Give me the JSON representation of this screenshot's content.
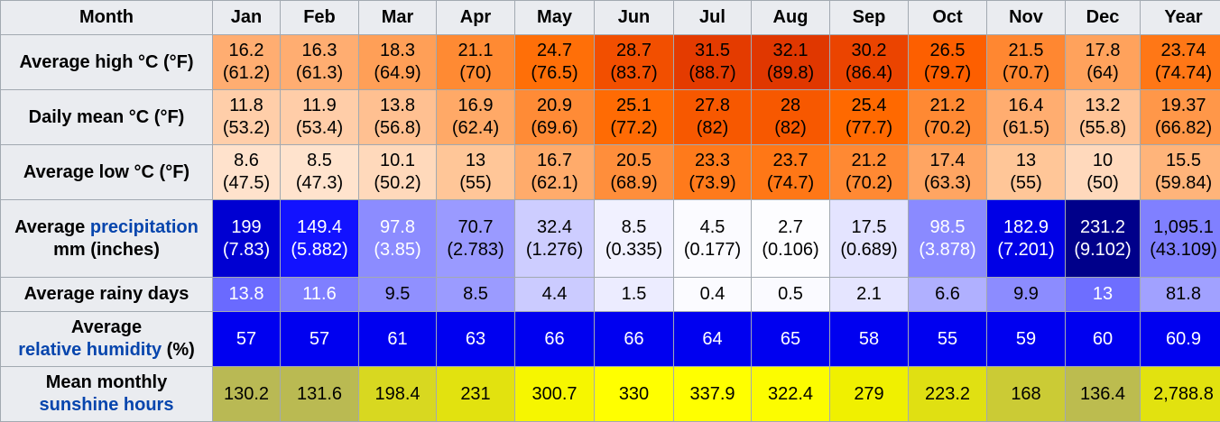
{
  "header": {
    "month_label": "Month",
    "months": [
      "Jan",
      "Feb",
      "Mar",
      "Apr",
      "May",
      "Jun",
      "Jul",
      "Aug",
      "Sep",
      "Oct",
      "Nov",
      "Dec"
    ],
    "year_label": "Year"
  },
  "rows": {
    "high": {
      "label": "Average high °C (°F)",
      "cells": [
        {
          "c": "16.2",
          "f": "(61.2)",
          "bg": "#ffad71",
          "fg": "#000000"
        },
        {
          "c": "16.3",
          "f": "(61.3)",
          "bg": "#ffad71",
          "fg": "#000000"
        },
        {
          "c": "18.3",
          "f": "(64.9)",
          "bg": "#ff9f57",
          "fg": "#000000"
        },
        {
          "c": "21.1",
          "f": "(70)",
          "bg": "#ff8a33",
          "fg": "#000000"
        },
        {
          "c": "24.7",
          "f": "(76.5)",
          "bg": "#ff6f08",
          "fg": "#000000"
        },
        {
          "c": "28.7",
          "f": "(83.7)",
          "bg": "#f24f00",
          "fg": "#000000"
        },
        {
          "c": "31.5",
          "f": "(88.7)",
          "bg": "#e43b00",
          "fg": "#000000"
        },
        {
          "c": "32.1",
          "f": "(89.8)",
          "bg": "#e03700",
          "fg": "#000000"
        },
        {
          "c": "30.2",
          "f": "(86.4)",
          "bg": "#eb4400",
          "fg": "#000000"
        },
        {
          "c": "26.5",
          "f": "(79.7)",
          "bg": "#fd5f00",
          "fg": "#000000"
        },
        {
          "c": "21.5",
          "f": "(70.7)",
          "bg": "#ff8731",
          "fg": "#000000"
        },
        {
          "c": "17.8",
          "f": "(64)",
          "bg": "#ffa25c",
          "fg": "#000000"
        },
        {
          "c": "23.74",
          "f": "(74.74)",
          "bg": "#ff7716",
          "fg": "#000000"
        }
      ]
    },
    "mean": {
      "label": "Daily mean °C (°F)",
      "cells": [
        {
          "c": "11.8",
          "f": "(53.2)",
          "bg": "#ffcea9",
          "fg": "#000000"
        },
        {
          "c": "11.9",
          "f": "(53.4)",
          "bg": "#ffcda8",
          "fg": "#000000"
        },
        {
          "c": "13.8",
          "f": "(56.8)",
          "bg": "#ffc091",
          "fg": "#000000"
        },
        {
          "c": "16.9",
          "f": "(62.4)",
          "bg": "#ffa967",
          "fg": "#000000"
        },
        {
          "c": "20.9",
          "f": "(69.6)",
          "bg": "#ff8b36",
          "fg": "#000000"
        },
        {
          "c": "25.1",
          "f": "(77.2)",
          "bg": "#ff6b04",
          "fg": "#000000"
        },
        {
          "c": "27.8",
          "f": "(82)",
          "bg": "#f75800",
          "fg": "#000000"
        },
        {
          "c": "28",
          "f": "(82)",
          "bg": "#f75800",
          "fg": "#000000"
        },
        {
          "c": "25.4",
          "f": "(77.7)",
          "bg": "#ff6900",
          "fg": "#000000"
        },
        {
          "c": "21.2",
          "f": "(70.2)",
          "bg": "#ff8933",
          "fg": "#000000"
        },
        {
          "c": "16.4",
          "f": "(61.5)",
          "bg": "#ffad70",
          "fg": "#000000"
        },
        {
          "c": "13.2",
          "f": "(55.8)",
          "bg": "#ffc497",
          "fg": "#000000"
        },
        {
          "c": "19.37",
          "f": "(66.82)",
          "bg": "#ff9749",
          "fg": "#000000"
        }
      ]
    },
    "low": {
      "label": "Average low °C (°F)",
      "cells": [
        {
          "c": "8.6",
          "f": "(47.5)",
          "bg": "#ffe2cc",
          "fg": "#000000"
        },
        {
          "c": "8.5",
          "f": "(47.3)",
          "bg": "#ffe3cd",
          "fg": "#000000"
        },
        {
          "c": "10.1",
          "f": "(50.2)",
          "bg": "#ffd9bb",
          "fg": "#000000"
        },
        {
          "c": "13",
          "f": "(55)",
          "bg": "#ffc698",
          "fg": "#000000"
        },
        {
          "c": "16.7",
          "f": "(62.1)",
          "bg": "#ffab6b",
          "fg": "#000000"
        },
        {
          "c": "20.5",
          "f": "(68.9)",
          "bg": "#ff8e3b",
          "fg": "#000000"
        },
        {
          "c": "23.3",
          "f": "(73.9)",
          "bg": "#ff7a1b",
          "fg": "#000000"
        },
        {
          "c": "23.7",
          "f": "(74.7)",
          "bg": "#ff7716",
          "fg": "#000000"
        },
        {
          "c": "21.2",
          "f": "(70.2)",
          "bg": "#ff8933",
          "fg": "#000000"
        },
        {
          "c": "17.4",
          "f": "(63.3)",
          "bg": "#ffa562",
          "fg": "#000000"
        },
        {
          "c": "13",
          "f": "(55)",
          "bg": "#ffc698",
          "fg": "#000000"
        },
        {
          "c": "10",
          "f": "(50)",
          "bg": "#ffd9bc",
          "fg": "#000000"
        },
        {
          "c": "15.5",
          "f": "(59.84)",
          "bg": "#ffb47a",
          "fg": "#000000"
        }
      ]
    },
    "precip": {
      "label_pre": "Average ",
      "label_link": "precipitation",
      "label_post": " mm (inches)",
      "cells": [
        {
          "c": "199",
          "f": "(7.83)",
          "bg": "#0000d2",
          "fg": "#ffffff"
        },
        {
          "c": "149.4",
          "f": "(5.882)",
          "bg": "#1212ff",
          "fg": "#ffffff"
        },
        {
          "c": "97.8",
          "f": "(3.85)",
          "bg": "#8c8cff",
          "fg": "#ffffff"
        },
        {
          "c": "70.7",
          "f": "(2.783)",
          "bg": "#9a9aff",
          "fg": "#000000"
        },
        {
          "c": "32.4",
          "f": "(1.276)",
          "bg": "#cdcdff",
          "fg": "#000000"
        },
        {
          "c": "8.5",
          "f": "(0.335)",
          "bg": "#f1f1ff",
          "fg": "#000000"
        },
        {
          "c": "4.5",
          "f": "(0.177)",
          "bg": "#fbfbff",
          "fg": "#000000"
        },
        {
          "c": "2.7",
          "f": "(0.106)",
          "bg": "#fdfdff",
          "fg": "#000000"
        },
        {
          "c": "17.5",
          "f": "(0.689)",
          "bg": "#e4e4ff",
          "fg": "#000000"
        },
        {
          "c": "98.5",
          "f": "(3.878)",
          "bg": "#8a8aff",
          "fg": "#ffffff"
        },
        {
          "c": "182.9",
          "f": "(7.201)",
          "bg": "#0000e6",
          "fg": "#ffffff"
        },
        {
          "c": "231.2",
          "f": "(9.102)",
          "bg": "#00008a",
          "fg": "#ffffff"
        },
        {
          "c": "1,095.1",
          "f": "(43.109)",
          "bg": "#8080ff",
          "fg": "#000000"
        }
      ]
    },
    "rainy": {
      "label": "Average rainy days",
      "cells": [
        {
          "v": "13.8",
          "bg": "#6a6aff",
          "fg": "#ffffff"
        },
        {
          "v": "11.6",
          "bg": "#7f7fff",
          "fg": "#ffffff"
        },
        {
          "v": "9.5",
          "bg": "#9090ff",
          "fg": "#000000"
        },
        {
          "v": "8.5",
          "bg": "#9b9bff",
          "fg": "#000000"
        },
        {
          "v": "4.4",
          "bg": "#cbcbff",
          "fg": "#000000"
        },
        {
          "v": "1.5",
          "bg": "#ececff",
          "fg": "#000000"
        },
        {
          "v": "0.4",
          "bg": "#fbfbff",
          "fg": "#000000"
        },
        {
          "v": "0.5",
          "bg": "#fafaff",
          "fg": "#000000"
        },
        {
          "v": "2.1",
          "bg": "#e5e5ff",
          "fg": "#000000"
        },
        {
          "v": "6.6",
          "bg": "#b0b0ff",
          "fg": "#000000"
        },
        {
          "v": "9.9",
          "bg": "#8c8cff",
          "fg": "#000000"
        },
        {
          "v": "13",
          "bg": "#6e6eff",
          "fg": "#ffffff"
        },
        {
          "v": "81.8",
          "bg": "#a1a1ff",
          "fg": "#000000"
        }
      ]
    },
    "humidity": {
      "label_pre": "Average ",
      "label_link": "relative humidity",
      "label_post": " (%)",
      "cells": [
        {
          "v": "57",
          "bg": "#0000f0",
          "fg": "#ffffff"
        },
        {
          "v": "57",
          "bg": "#0000f0",
          "fg": "#ffffff"
        },
        {
          "v": "61",
          "bg": "#0000f0",
          "fg": "#ffffff"
        },
        {
          "v": "63",
          "bg": "#0000f0",
          "fg": "#ffffff"
        },
        {
          "v": "66",
          "bg": "#0000f0",
          "fg": "#ffffff"
        },
        {
          "v": "66",
          "bg": "#0000f0",
          "fg": "#ffffff"
        },
        {
          "v": "64",
          "bg": "#0000f0",
          "fg": "#ffffff"
        },
        {
          "v": "65",
          "bg": "#0000f0",
          "fg": "#ffffff"
        },
        {
          "v": "58",
          "bg": "#0000f0",
          "fg": "#ffffff"
        },
        {
          "v": "55",
          "bg": "#0000f0",
          "fg": "#ffffff"
        },
        {
          "v": "59",
          "bg": "#0000f0",
          "fg": "#ffffff"
        },
        {
          "v": "60",
          "bg": "#0000f0",
          "fg": "#ffffff"
        },
        {
          "v": "60.9",
          "bg": "#0000f0",
          "fg": "#ffffff"
        }
      ]
    },
    "sunshine": {
      "label_pre": "Mean monthly ",
      "label_link": "sunshine hours",
      "label_post": "",
      "cells": [
        {
          "v": "130.2",
          "bg": "#b9b954",
          "fg": "#000000"
        },
        {
          "v": "131.6",
          "bg": "#baba52",
          "fg": "#000000"
        },
        {
          "v": "198.4",
          "bg": "#d8d820",
          "fg": "#000000"
        },
        {
          "v": "231",
          "bg": "#e2e20f",
          "fg": "#000000"
        },
        {
          "v": "300.7",
          "bg": "#f6f600",
          "fg": "#000000"
        },
        {
          "v": "330",
          "bg": "#ffff00",
          "fg": "#000000"
        },
        {
          "v": "337.9",
          "bg": "#ffff00",
          "fg": "#000000"
        },
        {
          "v": "322.4",
          "bg": "#fcfc00",
          "fg": "#000000"
        },
        {
          "v": "279",
          "bg": "#f0f000",
          "fg": "#000000"
        },
        {
          "v": "223.2",
          "bg": "#e0e012",
          "fg": "#000000"
        },
        {
          "v": "168",
          "bg": "#cbcb35",
          "fg": "#000000"
        },
        {
          "v": "136.4",
          "bg": "#bcbc4f",
          "fg": "#000000"
        },
        {
          "v": "2,788.8",
          "bg": "#e2e20f",
          "fg": "#000000"
        }
      ]
    }
  }
}
